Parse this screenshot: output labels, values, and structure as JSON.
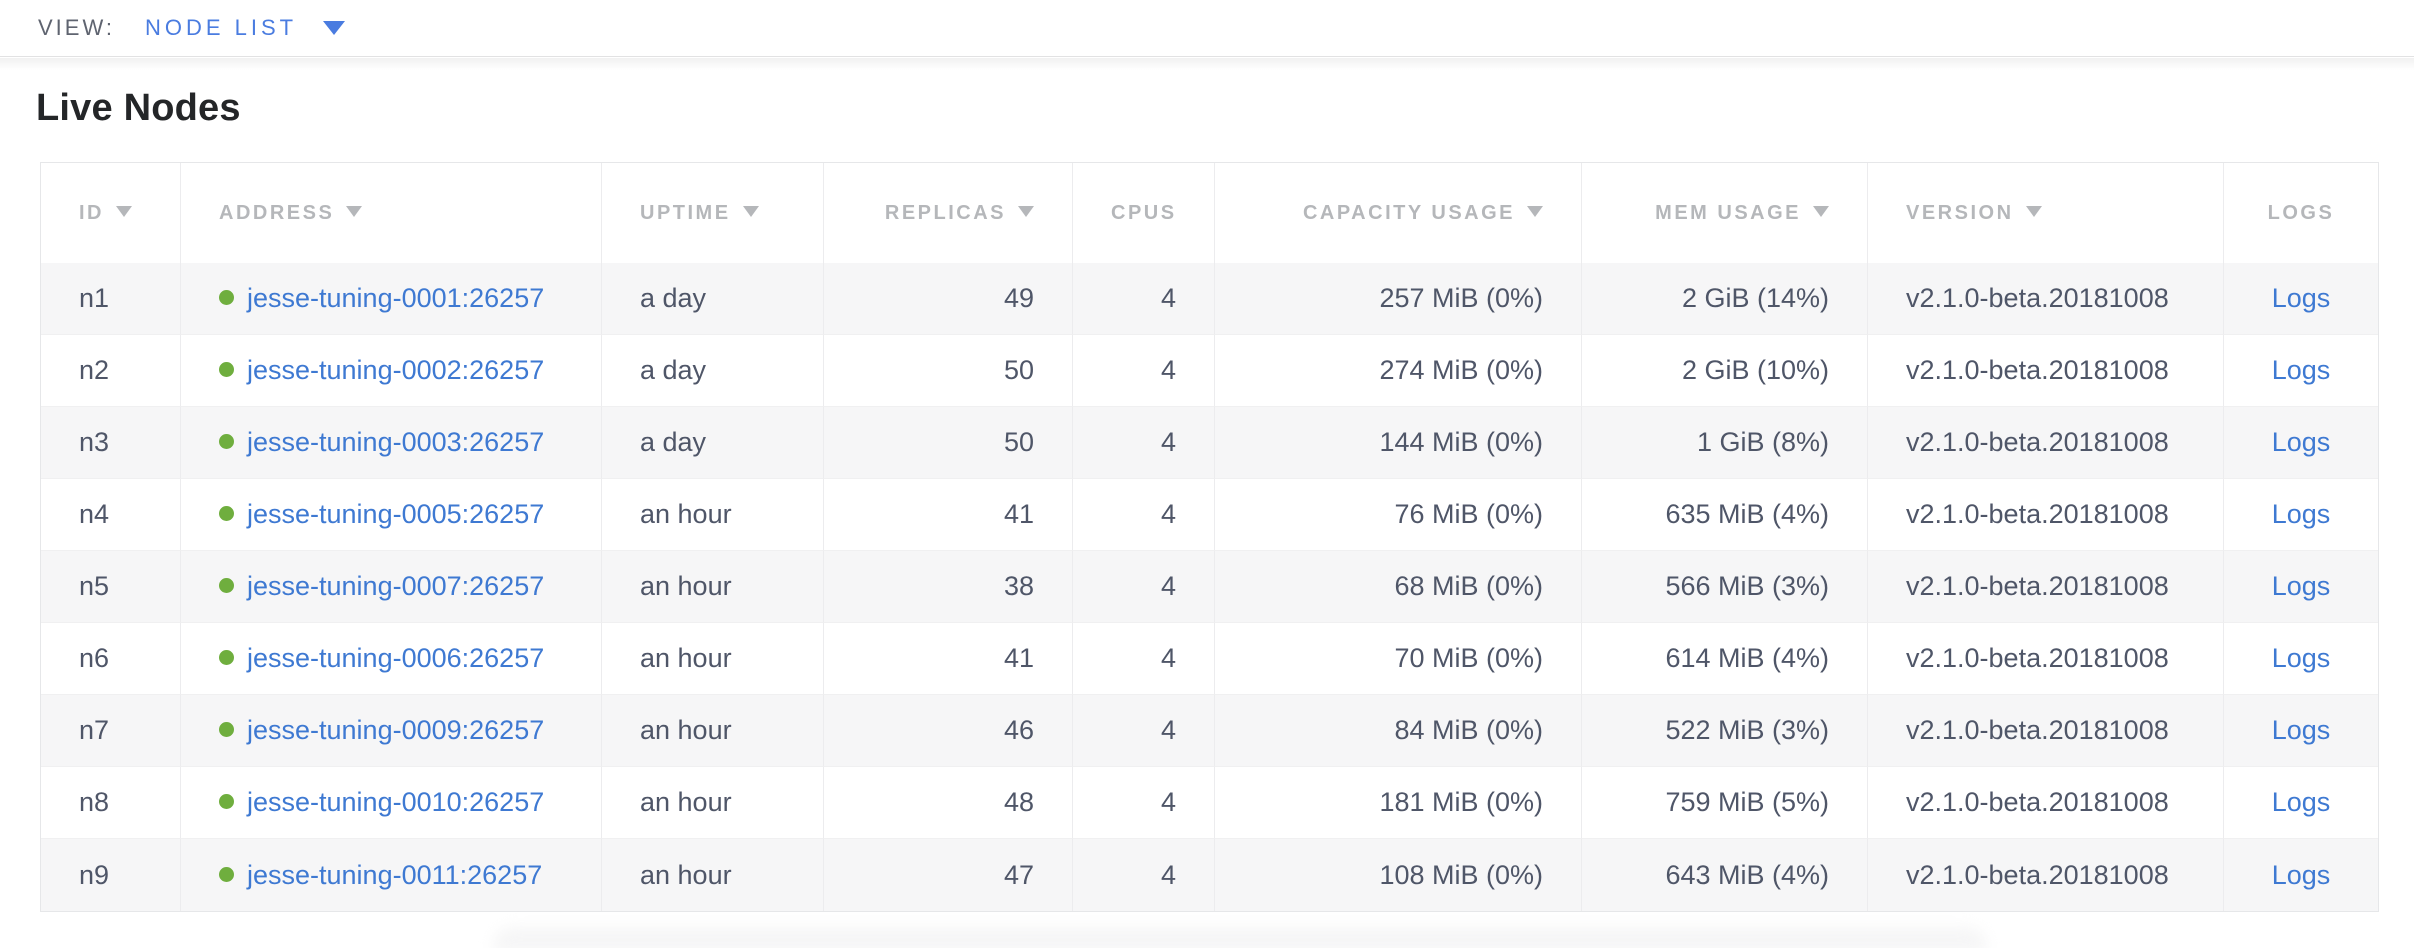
{
  "view_bar": {
    "label": "VIEW:",
    "selected": "NODE LIST"
  },
  "page_title": "Live Nodes",
  "table": {
    "columns": [
      {
        "key": "id",
        "label": "ID",
        "sortable": true
      },
      {
        "key": "address",
        "label": "ADDRESS",
        "sortable": true
      },
      {
        "key": "uptime",
        "label": "UPTIME",
        "sortable": true
      },
      {
        "key": "replicas",
        "label": "REPLICAS",
        "sortable": true
      },
      {
        "key": "cpus",
        "label": "CPUS",
        "sortable": false
      },
      {
        "key": "capacity",
        "label": "CAPACITY USAGE",
        "sortable": true
      },
      {
        "key": "mem",
        "label": "MEM USAGE",
        "sortable": true
      },
      {
        "key": "version",
        "label": "VERSION",
        "sortable": true
      },
      {
        "key": "logs",
        "label": "LOGS",
        "sortable": false
      }
    ],
    "rows": [
      {
        "id": "n1",
        "status": "live",
        "address": "jesse-tuning-0001:26257",
        "uptime": "a day",
        "replicas": "49",
        "cpus": "4",
        "capacity": "257 MiB (0%)",
        "mem": "2 GiB (14%)",
        "version": "v2.1.0-beta.20181008",
        "logs_label": "Logs"
      },
      {
        "id": "n2",
        "status": "live",
        "address": "jesse-tuning-0002:26257",
        "uptime": "a day",
        "replicas": "50",
        "cpus": "4",
        "capacity": "274 MiB (0%)",
        "mem": "2 GiB (10%)",
        "version": "v2.1.0-beta.20181008",
        "logs_label": "Logs"
      },
      {
        "id": "n3",
        "status": "live",
        "address": "jesse-tuning-0003:26257",
        "uptime": "a day",
        "replicas": "50",
        "cpus": "4",
        "capacity": "144 MiB (0%)",
        "mem": "1 GiB (8%)",
        "version": "v2.1.0-beta.20181008",
        "logs_label": "Logs"
      },
      {
        "id": "n4",
        "status": "live",
        "address": "jesse-tuning-0005:26257",
        "uptime": "an hour",
        "replicas": "41",
        "cpus": "4",
        "capacity": "76 MiB (0%)",
        "mem": "635 MiB (4%)",
        "version": "v2.1.0-beta.20181008",
        "logs_label": "Logs"
      },
      {
        "id": "n5",
        "status": "live",
        "address": "jesse-tuning-0007:26257",
        "uptime": "an hour",
        "replicas": "38",
        "cpus": "4",
        "capacity": "68 MiB (0%)",
        "mem": "566 MiB (3%)",
        "version": "v2.1.0-beta.20181008",
        "logs_label": "Logs"
      },
      {
        "id": "n6",
        "status": "live",
        "address": "jesse-tuning-0006:26257",
        "uptime": "an hour",
        "replicas": "41",
        "cpus": "4",
        "capacity": "70 MiB (0%)",
        "mem": "614 MiB (4%)",
        "version": "v2.1.0-beta.20181008",
        "logs_label": "Logs"
      },
      {
        "id": "n7",
        "status": "live",
        "address": "jesse-tuning-0009:26257",
        "uptime": "an hour",
        "replicas": "46",
        "cpus": "4",
        "capacity": "84 MiB (0%)",
        "mem": "522 MiB (3%)",
        "version": "v2.1.0-beta.20181008",
        "logs_label": "Logs"
      },
      {
        "id": "n8",
        "status": "live",
        "address": "jesse-tuning-0010:26257",
        "uptime": "an hour",
        "replicas": "48",
        "cpus": "4",
        "capacity": "181 MiB (0%)",
        "mem": "759 MiB (5%)",
        "version": "v2.1.0-beta.20181008",
        "logs_label": "Logs"
      },
      {
        "id": "n9",
        "status": "live",
        "address": "jesse-tuning-0011:26257",
        "uptime": "an hour",
        "replicas": "47",
        "cpus": "4",
        "capacity": "108 MiB (0%)",
        "mem": "643 MiB (4%)",
        "version": "v2.1.0-beta.20181008",
        "logs_label": "Logs"
      }
    ]
  },
  "colors": {
    "accent_blue": "#4a7ce0",
    "link_blue": "#3e79d2",
    "live_green": "#6fae3e",
    "header_gray": "#b5b7ba",
    "cell_text": "#4f5668",
    "view_label_gray": "#5f6470"
  }
}
